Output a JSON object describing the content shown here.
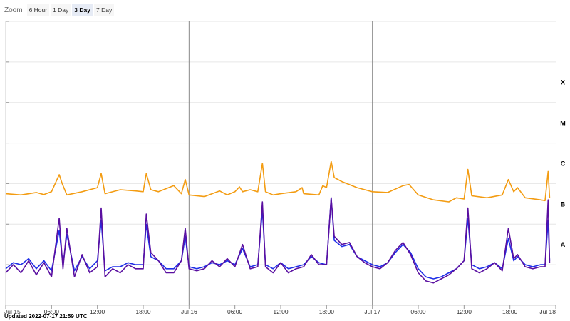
{
  "zoom": {
    "label": "Zoom",
    "buttons": [
      {
        "label": "6 Hour",
        "selected": false
      },
      {
        "label": "1 Day",
        "selected": false
      },
      {
        "label": "3 Day",
        "selected": true
      },
      {
        "label": "7 Day",
        "selected": false
      }
    ]
  },
  "updated": "Updated 2022-07-17 21:59 UTC",
  "colors": {
    "long_channel": "#f39c12",
    "short_channel_blue": "#1f2ee8",
    "short_channel_purple": "#5a0fa0",
    "grid": "#e6e6e6",
    "day_divider": "#888888"
  },
  "chart_data": {
    "type": "line",
    "x_axis": {
      "type": "datetime",
      "range": [
        "2022-07-15T00:00",
        "2022-07-18T00:00"
      ],
      "tick_labels": [
        {
          "t": 0,
          "label": "Jul 15"
        },
        {
          "t": 6,
          "label": "06:00"
        },
        {
          "t": 12,
          "label": "12:00"
        },
        {
          "t": 18,
          "label": "18:00"
        },
        {
          "t": 24,
          "label": "Jul 16"
        },
        {
          "t": 30,
          "label": "06:00"
        },
        {
          "t": 36,
          "label": "12:00"
        },
        {
          "t": 42,
          "label": "18:00"
        },
        {
          "t": 48,
          "label": "Jul 17"
        },
        {
          "t": 54,
          "label": "06:00"
        },
        {
          "t": 60,
          "label": "12:00"
        },
        {
          "t": 66,
          "label": "18:00"
        },
        {
          "t": 72,
          "label": "Jul 18"
        }
      ],
      "t_unit": "hours since Jul 15 00:00 UTC",
      "day_dividers": [
        24,
        48
      ]
    },
    "y_axis": {
      "type": "log",
      "range_exponent": [
        -9,
        -2
      ],
      "class_labels": [
        {
          "label": "X",
          "exponent": -4
        },
        {
          "label": "M",
          "exponent": -5
        },
        {
          "label": "C",
          "exponent": -6
        },
        {
          "label": "B",
          "exponent": -7
        },
        {
          "label": "A",
          "exponent": -8
        }
      ],
      "grid": true
    },
    "series": [
      {
        "channel": "long",
        "color": "#f39c12",
        "points": [
          [
            0,
            -6.25
          ],
          [
            2,
            -6.28
          ],
          [
            4,
            -6.22
          ],
          [
            5,
            -6.27
          ],
          [
            6,
            -6.2
          ],
          [
            7,
            -5.78
          ],
          [
            7.4,
            -6.0
          ],
          [
            8,
            -6.28
          ],
          [
            10,
            -6.2
          ],
          [
            12,
            -6.1
          ],
          [
            12.5,
            -5.75
          ],
          [
            13,
            -6.25
          ],
          [
            15,
            -6.15
          ],
          [
            17,
            -6.18
          ],
          [
            18,
            -6.2
          ],
          [
            18.4,
            -5.75
          ],
          [
            19,
            -6.15
          ],
          [
            20,
            -6.2
          ],
          [
            22,
            -6.05
          ],
          [
            23,
            -6.25
          ],
          [
            23.5,
            -5.9
          ],
          [
            24,
            -6.28
          ],
          [
            26,
            -6.32
          ],
          [
            28,
            -6.18
          ],
          [
            29,
            -6.28
          ],
          [
            30,
            -6.2
          ],
          [
            30.6,
            -6.08
          ],
          [
            31,
            -6.2
          ],
          [
            32,
            -6.15
          ],
          [
            33,
            -6.2
          ],
          [
            33.6,
            -5.5
          ],
          [
            34,
            -6.2
          ],
          [
            35,
            -6.28
          ],
          [
            36,
            -6.25
          ],
          [
            38,
            -6.2
          ],
          [
            38.8,
            -6.1
          ],
          [
            39,
            -6.25
          ],
          [
            41,
            -6.28
          ],
          [
            41.5,
            -6.05
          ],
          [
            42,
            -6.1
          ],
          [
            42.6,
            -5.45
          ],
          [
            43,
            -5.85
          ],
          [
            44,
            -5.95
          ],
          [
            46,
            -6.1
          ],
          [
            48,
            -6.2
          ],
          [
            50,
            -6.22
          ],
          [
            52,
            -6.05
          ],
          [
            52.8,
            -6.02
          ],
          [
            54,
            -6.28
          ],
          [
            56,
            -6.4
          ],
          [
            58,
            -6.45
          ],
          [
            59,
            -6.35
          ],
          [
            60,
            -6.38
          ],
          [
            60.5,
            -5.65
          ],
          [
            61,
            -6.3
          ],
          [
            63,
            -6.35
          ],
          [
            65,
            -6.28
          ],
          [
            65.8,
            -5.9
          ],
          [
            66.5,
            -6.2
          ],
          [
            67,
            -6.1
          ],
          [
            68,
            -6.35
          ],
          [
            70,
            -6.4
          ],
          [
            70.6,
            -6.42
          ],
          [
            71,
            -5.7
          ],
          [
            71.2,
            -6.35
          ]
        ]
      },
      {
        "channel": "short-blue",
        "color": "#1f2ee8",
        "points": [
          [
            0,
            -8.1
          ],
          [
            1,
            -7.95
          ],
          [
            2,
            -8.0
          ],
          [
            3,
            -7.85
          ],
          [
            4,
            -8.1
          ],
          [
            5,
            -7.9
          ],
          [
            6,
            -8.15
          ],
          [
            7,
            -7.15
          ],
          [
            7.5,
            -8.0
          ],
          [
            8,
            -7.25
          ],
          [
            9,
            -8.15
          ],
          [
            10,
            -7.8
          ],
          [
            11,
            -8.1
          ],
          [
            12,
            -7.9
          ],
          [
            12.5,
            -6.9
          ],
          [
            13,
            -8.15
          ],
          [
            14,
            -8.05
          ],
          [
            15,
            -8.05
          ],
          [
            16,
            -7.95
          ],
          [
            17,
            -8.0
          ],
          [
            18,
            -8.0
          ],
          [
            18.4,
            -7.0
          ],
          [
            19,
            -7.8
          ],
          [
            20,
            -7.9
          ],
          [
            21,
            -8.1
          ],
          [
            22,
            -8.1
          ],
          [
            23,
            -7.9
          ],
          [
            23.5,
            -7.3
          ],
          [
            24,
            -8.05
          ],
          [
            25,
            -8.1
          ],
          [
            26,
            -8.05
          ],
          [
            27,
            -7.95
          ],
          [
            28,
            -8.0
          ],
          [
            29,
            -7.9
          ],
          [
            30,
            -8.0
          ],
          [
            31,
            -7.6
          ],
          [
            32,
            -8.05
          ],
          [
            33,
            -8.0
          ],
          [
            33.6,
            -6.65
          ],
          [
            34,
            -8.0
          ],
          [
            35,
            -8.1
          ],
          [
            36,
            -7.95
          ],
          [
            37,
            -8.1
          ],
          [
            38,
            -8.05
          ],
          [
            39,
            -8.0
          ],
          [
            40,
            -7.8
          ],
          [
            41,
            -7.95
          ],
          [
            42,
            -8.0
          ],
          [
            42.6,
            -6.35
          ],
          [
            43,
            -7.4
          ],
          [
            44,
            -7.55
          ],
          [
            45,
            -7.5
          ],
          [
            46,
            -7.8
          ],
          [
            47,
            -7.9
          ],
          [
            48,
            -8.0
          ],
          [
            49,
            -8.05
          ],
          [
            50,
            -7.95
          ],
          [
            51,
            -7.7
          ],
          [
            52,
            -7.5
          ],
          [
            53,
            -7.7
          ],
          [
            54,
            -8.1
          ],
          [
            55,
            -8.3
          ],
          [
            56,
            -8.35
          ],
          [
            57,
            -8.3
          ],
          [
            58,
            -8.2
          ],
          [
            59,
            -8.1
          ],
          [
            60,
            -7.9
          ],
          [
            60.5,
            -6.85
          ],
          [
            61,
            -8.0
          ],
          [
            62,
            -8.1
          ],
          [
            63,
            -8.05
          ],
          [
            64,
            -7.95
          ],
          [
            65,
            -8.1
          ],
          [
            65.8,
            -7.35
          ],
          [
            66.5,
            -7.9
          ],
          [
            67,
            -7.8
          ],
          [
            68,
            -8.0
          ],
          [
            69,
            -8.05
          ],
          [
            70,
            -8.0
          ],
          [
            70.6,
            -8.0
          ],
          [
            71,
            -6.9
          ],
          [
            71.2,
            -7.9
          ]
        ]
      },
      {
        "channel": "short-purple",
        "color": "#5a0fa0",
        "points": [
          [
            0,
            -8.2
          ],
          [
            1,
            -8.0
          ],
          [
            2,
            -8.2
          ],
          [
            3,
            -7.9
          ],
          [
            4,
            -8.25
          ],
          [
            5,
            -7.95
          ],
          [
            6,
            -8.3
          ],
          [
            7,
            -6.85
          ],
          [
            7.5,
            -8.1
          ],
          [
            8,
            -7.1
          ],
          [
            9,
            -8.3
          ],
          [
            10,
            -7.75
          ],
          [
            11,
            -8.2
          ],
          [
            12,
            -8.05
          ],
          [
            12.5,
            -6.6
          ],
          [
            13,
            -8.3
          ],
          [
            14,
            -8.1
          ],
          [
            15,
            -8.2
          ],
          [
            16,
            -8.0
          ],
          [
            17,
            -8.1
          ],
          [
            18,
            -8.1
          ],
          [
            18.4,
            -6.75
          ],
          [
            19,
            -7.7
          ],
          [
            20,
            -7.9
          ],
          [
            21,
            -8.2
          ],
          [
            22,
            -8.2
          ],
          [
            23,
            -7.9
          ],
          [
            23.5,
            -7.1
          ],
          [
            24,
            -8.1
          ],
          [
            25,
            -8.15
          ],
          [
            26,
            -8.1
          ],
          [
            27,
            -7.9
          ],
          [
            28,
            -8.05
          ],
          [
            29,
            -7.85
          ],
          [
            30,
            -8.05
          ],
          [
            31,
            -7.5
          ],
          [
            32,
            -8.1
          ],
          [
            33,
            -8.05
          ],
          [
            33.6,
            -6.45
          ],
          [
            34,
            -8.05
          ],
          [
            35,
            -8.2
          ],
          [
            36,
            -7.95
          ],
          [
            37,
            -8.2
          ],
          [
            38,
            -8.1
          ],
          [
            39,
            -8.05
          ],
          [
            40,
            -7.75
          ],
          [
            41,
            -8.0
          ],
          [
            42,
            -8.0
          ],
          [
            42.6,
            -6.35
          ],
          [
            43,
            -7.3
          ],
          [
            44,
            -7.5
          ],
          [
            45,
            -7.45
          ],
          [
            46,
            -7.8
          ],
          [
            47,
            -7.95
          ],
          [
            48,
            -8.05
          ],
          [
            49,
            -8.1
          ],
          [
            50,
            -7.95
          ],
          [
            51,
            -7.65
          ],
          [
            52,
            -7.45
          ],
          [
            53,
            -7.75
          ],
          [
            54,
            -8.2
          ],
          [
            55,
            -8.4
          ],
          [
            56,
            -8.45
          ],
          [
            57,
            -8.35
          ],
          [
            58,
            -8.25
          ],
          [
            59,
            -8.1
          ],
          [
            60,
            -7.9
          ],
          [
            60.5,
            -6.6
          ],
          [
            61,
            -8.1
          ],
          [
            62,
            -8.2
          ],
          [
            63,
            -8.1
          ],
          [
            64,
            -7.95
          ],
          [
            65,
            -8.15
          ],
          [
            65.8,
            -7.1
          ],
          [
            66.5,
            -7.85
          ],
          [
            67,
            -7.75
          ],
          [
            68,
            -8.05
          ],
          [
            69,
            -8.1
          ],
          [
            70,
            -8.05
          ],
          [
            70.6,
            -8.05
          ],
          [
            71,
            -6.4
          ],
          [
            71.2,
            -7.95
          ]
        ]
      }
    ]
  }
}
